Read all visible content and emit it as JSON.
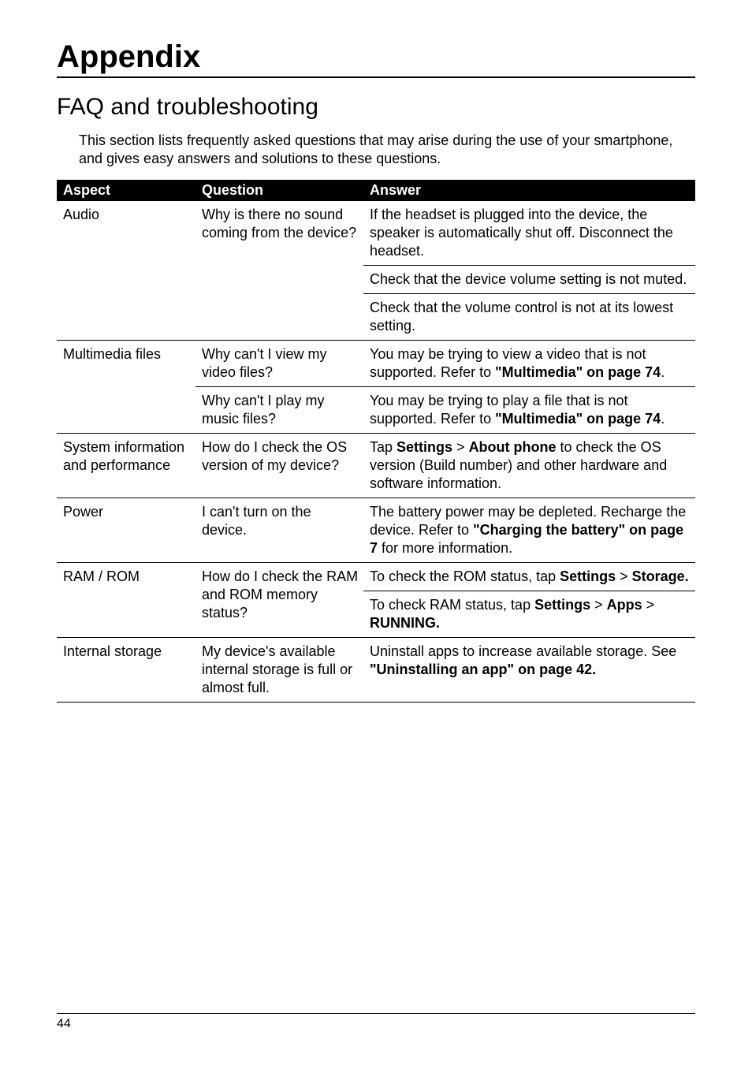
{
  "colors": {
    "bg": "#ffffff",
    "fg": "#000000",
    "headerBg": "#000000",
    "headerFg": "#ffffff"
  },
  "title": "Appendix",
  "subtitle": "FAQ and troubleshooting",
  "intro": "This section lists frequently asked questions that may arise during the use of your smartphone, and gives easy answers and solutions to these questions.",
  "table": {
    "columns": [
      "Aspect",
      "Question",
      "Answer"
    ],
    "groups": [
      {
        "aspect": "Audio",
        "question": "Why is there no sound coming from the device?",
        "answers": [
          "If the headset is plugged into the device, the speaker is automatically shut off. Disconnect the headset.",
          "Check that the device volume setting is not muted.",
          "Check that the volume control is not at its lowest setting."
        ]
      },
      {
        "aspect": "Multimedia files",
        "subrows": [
          {
            "question": "Why can't I view my video files?",
            "answer_html": "You may be trying to view a video that is not supported. Refer to <b>\"Multimedia\" on page 74</b>."
          },
          {
            "question": "Why can't I play my music files?",
            "answer_html": "You may be trying to play a file that is not supported. Refer to <b>\"Multimedia\" on page 74</b>."
          }
        ]
      },
      {
        "aspect": "System information and performance",
        "question": "How do I check the OS version of my device?",
        "answer_html": "Tap <b>Settings</b> > <b>About phone</b> to check the OS version (Build number) and other hardware and software information."
      },
      {
        "aspect": "Power",
        "question": "I can't turn on the device.",
        "answer_html": "The battery power may be depleted. Recharge the device. Refer to <b>\"Charging the battery\" on page 7</b> for more information."
      },
      {
        "aspect": "RAM / ROM",
        "question": "How do I check the RAM and ROM memory status?",
        "answers_html": [
          "To check the ROM status, tap <b>Settings</b> > <b>Storage.</b>",
          "To check RAM status, tap <b>Settings</b> > <b>Apps</b> > <b>RUNNING.</b>"
        ]
      },
      {
        "aspect": "Internal storage",
        "question": "My device's available internal storage is full or almost full.",
        "answer_html": "Uninstall apps to increase available storage. See <b>\"Uninstalling an app\" on page 42.</b>"
      }
    ]
  },
  "pageNumber": "44"
}
